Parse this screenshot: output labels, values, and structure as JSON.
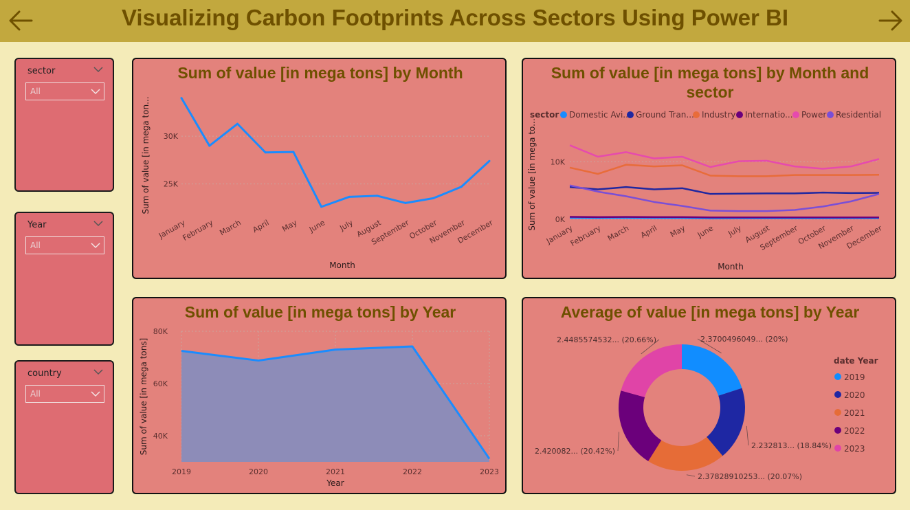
{
  "header": {
    "title": "Visualizing Carbon Footprints Across Sectors Using Power BI",
    "back_icon": "arrow-left-icon",
    "forward_icon": "arrow-right-icon"
  },
  "slicers": [
    {
      "label": "sector",
      "value": "All"
    },
    {
      "label": "Year",
      "value": "All"
    },
    {
      "label": "country",
      "value": "All"
    }
  ],
  "colors": {
    "header_bg": "#c2a83e",
    "title": "#6e5000",
    "card_bg": "#e3827c",
    "slicer_bg": "#de6c72",
    "page_bg": "#f4ebb8"
  },
  "chart_data": [
    {
      "type": "line",
      "title": "Sum of value [in mega tons] by Month",
      "xlabel": "Month",
      "ylabel": "Sum of value [in mega ton...",
      "categories": [
        "January",
        "February",
        "March",
        "April",
        "May",
        "June",
        "July",
        "August",
        "September",
        "October",
        "November",
        "December"
      ],
      "values": [
        34000,
        29000,
        31300,
        28300,
        28350,
        22600,
        23650,
        23750,
        23000,
        23500,
        24700,
        27400
      ],
      "yticks": [
        {
          "v": 25000,
          "label": "25K"
        },
        {
          "v": 30000,
          "label": "30K"
        }
      ],
      "ylim": [
        21800,
        35200
      ],
      "color": "#1a8cff"
    },
    {
      "type": "line",
      "title": "Sum of value [in mega tons] by Month and sector",
      "xlabel": "Month",
      "ylabel": "Sum of value [in mega to...",
      "legend_title": "sector",
      "categories": [
        "January",
        "February",
        "March",
        "April",
        "May",
        "June",
        "July",
        "August",
        "September",
        "October",
        "November",
        "December"
      ],
      "series": [
        {
          "name": "Domestic Avi...",
          "color": "#1a8cff",
          "values": [
            200,
            180,
            190,
            170,
            170,
            120,
            130,
            130,
            130,
            130,
            140,
            150
          ]
        },
        {
          "name": "Ground Tran...",
          "color": "#1f27a0",
          "values": [
            5600,
            5200,
            5600,
            5200,
            5400,
            4400,
            4450,
            4500,
            4500,
            4650,
            4550,
            4600
          ]
        },
        {
          "name": "Industry",
          "color": "#e86c3a",
          "values": [
            9000,
            7900,
            9500,
            9200,
            9400,
            7600,
            7500,
            7500,
            7700,
            7700,
            7700,
            7750
          ]
        },
        {
          "name": "Internatio...",
          "color": "#6b007b",
          "values": [
            400,
            350,
            380,
            350,
            350,
            300,
            300,
            300,
            300,
            300,
            300,
            300
          ]
        },
        {
          "name": "Power",
          "color": "#e64aae",
          "values": [
            12900,
            10900,
            11700,
            10600,
            10900,
            9100,
            10100,
            10200,
            9200,
            8800,
            9200,
            10500
          ]
        },
        {
          "name": "Residential",
          "color": "#7a4fd6",
          "values": [
            5900,
            4800,
            4000,
            3000,
            2300,
            1500,
            1400,
            1400,
            1600,
            2200,
            3100,
            4400
          ]
        }
      ],
      "yticks": [
        {
          "v": 0,
          "label": "0K"
        },
        {
          "v": 10000,
          "label": "10K"
        }
      ],
      "ylim": [
        -500,
        14500
      ]
    },
    {
      "type": "area",
      "title": "Sum of value [in mega tons] by Year",
      "xlabel": "Year",
      "ylabel": "Sum of value [in mega tons]",
      "categories": [
        "2019",
        "2020",
        "2021",
        "2022",
        "2023"
      ],
      "values": [
        72500,
        68800,
        73000,
        74200,
        31200
      ],
      "yticks": [
        {
          "v": 40000,
          "label": "40K"
        },
        {
          "v": 60000,
          "label": "60K"
        },
        {
          "v": 80000,
          "label": "80K"
        }
      ],
      "ylim": [
        30000,
        80000
      ],
      "line_color": "#1a8cff",
      "fill_color": "#8d8cb8"
    },
    {
      "type": "pie",
      "title": "Average of value [in mega tons] by Year",
      "legend_title": "date Year",
      "slices": [
        {
          "name": "2019",
          "value": 20.0,
          "label": "2.3700496049... (20%)",
          "color": "#118dff"
        },
        {
          "name": "2020",
          "value": 18.84,
          "label": "2.232813... (18.84%)",
          "color": "#1e27a3"
        },
        {
          "name": "2021",
          "value": 20.07,
          "label": "2.37828910253... (20.07%)",
          "color": "#e66c37"
        },
        {
          "name": "2022",
          "value": 20.42,
          "label": "2.420082... (20.42%)",
          "color": "#6b007b"
        },
        {
          "name": "2023",
          "value": 20.66,
          "label": "2.4485574532... (20.66%)",
          "color": "#e044a7"
        }
      ]
    }
  ]
}
